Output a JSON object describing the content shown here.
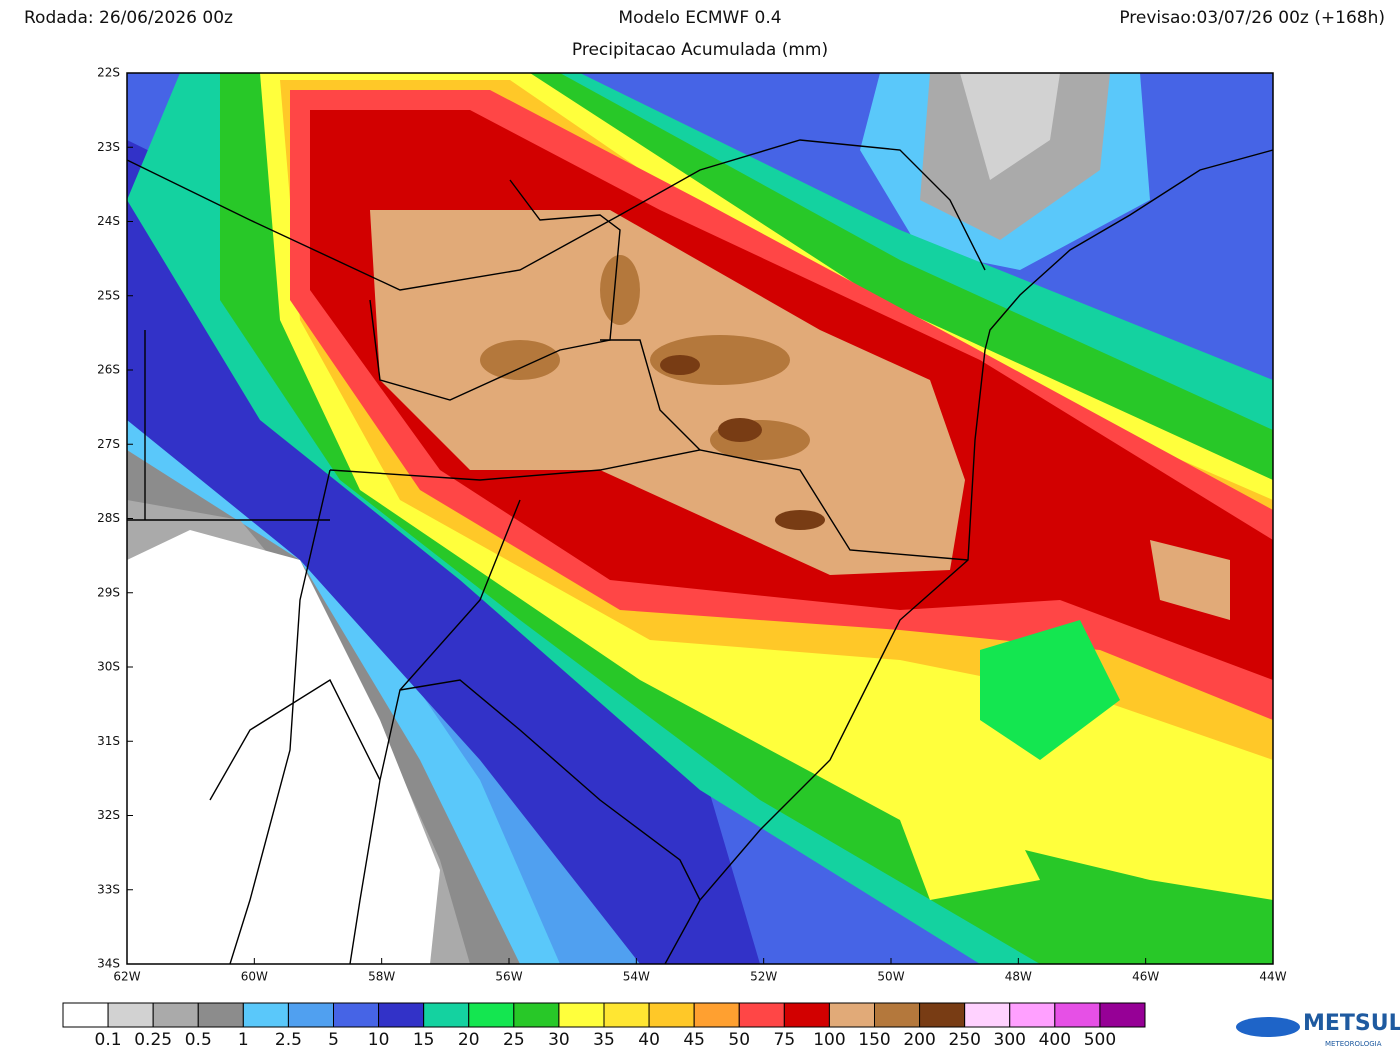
{
  "header": {
    "left": "Rodada: 26/06/2026 00z",
    "center": "Modelo ECMWF 0.4",
    "right": "Previsao:03/07/26 00z (+168h)",
    "subtitle": "Precipitacao Acumulada (mm)"
  },
  "map": {
    "lat_labels": [
      "22S",
      "23S",
      "24S",
      "25S",
      "26S",
      "27S",
      "28S",
      "29S",
      "30S",
      "31S",
      "32S",
      "33S",
      "34S"
    ],
    "lon_labels": [
      "62W",
      "60W",
      "58W",
      "56W",
      "54W",
      "52W",
      "50W",
      "48W",
      "46W",
      "44W"
    ]
  },
  "colorbar": {
    "labels": [
      "0.1",
      "0.25",
      "0.5",
      "1",
      "2.5",
      "5",
      "10",
      "15",
      "20",
      "25",
      "30",
      "35",
      "40",
      "45",
      "50",
      "75",
      "100",
      "150",
      "200",
      "250",
      "300",
      "400",
      "500"
    ],
    "colors": [
      "#ffffff",
      "#d2d2d2",
      "#aaaaaa",
      "#8c8c8c",
      "#5ac8fa",
      "#50a0f0",
      "#4664e6",
      "#3232c8",
      "#14d2a0",
      "#14e650",
      "#28c828",
      "#ffff3c",
      "#ffe632",
      "#ffc828",
      "#ffa030",
      "#ff4646",
      "#d20000",
      "#e1aa78",
      "#b4783c",
      "#783c14",
      "#ffd2ff",
      "#ffa0ff",
      "#e650e6",
      "#960096"
    ]
  },
  "logo": {
    "name": "METSUL",
    "tagline": "METEOROLOGIA"
  }
}
